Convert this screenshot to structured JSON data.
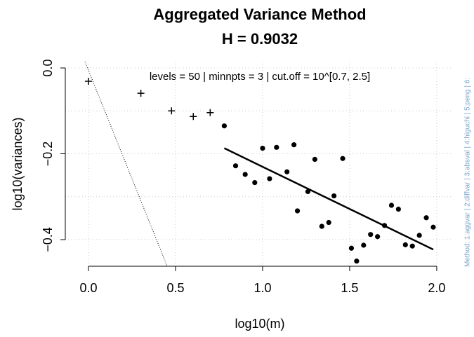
{
  "chart_data": {
    "type": "scatter",
    "title": [
      "Aggregated Variance Method",
      "H = 0.9032"
    ],
    "annotation": "levels = 50 | minnpts = 3 | cut.off = 10^[0.7, 2.5]",
    "side_text": "Method: 1:aggvar | 2:diffvar | 3:absval | 4:higuchi | 5:peng | 6:",
    "x_label": "log10(m)",
    "y_label": "log10(variances)",
    "xlim": [
      -0.133,
      2.093
    ],
    "ylim": [
      -0.462,
      0.0147
    ],
    "xticks": [
      {
        "value": 0,
        "label": "0.0"
      },
      {
        "value": 0.5,
        "label": "0.5"
      },
      {
        "value": 1,
        "label": "1.0"
      },
      {
        "value": 1.5,
        "label": "1.5"
      },
      {
        "value": 2,
        "label": "2.0"
      }
    ],
    "yticks": [
      {
        "value": 0,
        "label": "0.0"
      },
      {
        "value": -0.2,
        "label": "−0.2"
      },
      {
        "value": -0.4,
        "label": "−0.4"
      }
    ],
    "ygrid": [
      0,
      -0.1,
      -0.2,
      -0.3,
      -0.4
    ],
    "grid": true,
    "series": [
      {
        "marker": "plus",
        "color": "#000000",
        "x": [
          0,
          0.301,
          0.477,
          0.602,
          0.699
        ],
        "values": [
          -0.031,
          -0.059,
          -0.1,
          -0.113,
          -0.104
        ]
      },
      {
        "marker": "dot",
        "color": "#000000",
        "x": [
          0.78,
          0.845,
          0.9,
          0.955,
          1.0,
          1.04,
          1.08,
          1.14,
          1.18,
          1.2,
          1.26,
          1.3,
          1.34,
          1.38,
          1.41,
          1.46,
          1.51,
          1.54,
          1.58,
          1.62,
          1.66,
          1.7,
          1.74,
          1.78,
          1.82,
          1.86,
          1.9,
          1.94,
          1.98
        ],
        "values": [
          -0.135,
          -0.228,
          -0.248,
          -0.267,
          -0.187,
          -0.258,
          -0.185,
          -0.242,
          -0.179,
          -0.333,
          -0.288,
          -0.213,
          -0.369,
          -0.36,
          -0.298,
          -0.211,
          -0.42,
          -0.45,
          -0.413,
          -0.388,
          -0.393,
          -0.367,
          -0.32,
          -0.329,
          -0.412,
          -0.415,
          -0.39,
          -0.349,
          -0.371
        ]
      }
    ],
    "fit_line": {
      "x": [
        0.78,
        1.98
      ],
      "values": [
        -0.187,
        -0.423
      ]
    },
    "reference_line": {
      "x": [
        -0.02,
        0.452
      ],
      "values": [
        0.0147,
        -0.462
      ]
    }
  }
}
